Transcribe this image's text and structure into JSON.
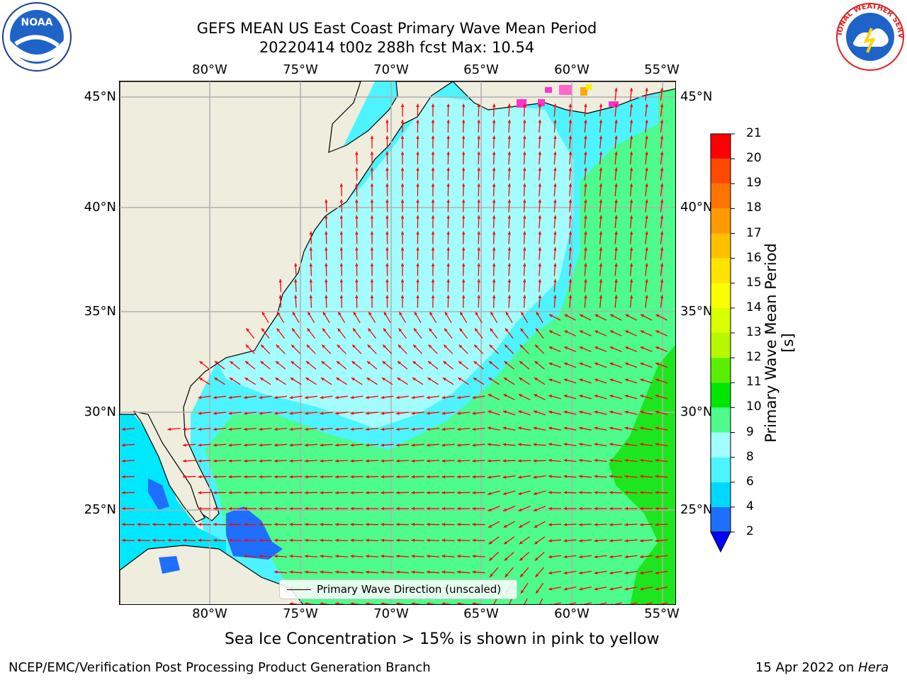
{
  "title_line1": "GEFS MEAN US East Coast Primary Wave Mean Period",
  "title_line2": "20220414 t00z 288h fcst   Max: 10.54",
  "lon_ticks": [
    "80°W",
    "75°W",
    "70°W",
    "65°W",
    "60°W",
    "55°W"
  ],
  "lat_ticks_left": [
    "45°N",
    "40°N",
    "35°N",
    "30°N",
    "25°N"
  ],
  "lat_ticks_right": [
    "45°N",
    "40°N",
    "35°N",
    "30°N",
    "25°N"
  ],
  "legend_label": "Primary Wave Direction (unscaled)",
  "colorbar": {
    "label": "Primary Wave Mean Period [s]",
    "ticks": [
      "2",
      "4",
      "6",
      "8",
      "9",
      "10",
      "11",
      "12",
      "13",
      "14",
      "15",
      "16",
      "17",
      "18",
      "19",
      "20",
      "21"
    ],
    "colors": [
      "#1f6fff",
      "#00d8ff",
      "#4df4ff",
      "#a3fdff",
      "#4dfc8c",
      "#00e600",
      "#5aef00",
      "#b7f700",
      "#d9ff00",
      "#f9ff00",
      "#ffe400",
      "#ffc000",
      "#ff9a00",
      "#ff7400",
      "#ff4a00",
      "#ff0000"
    ],
    "under_color": "#0000ff"
  },
  "caption": "Sea Ice Concentration > 15% is shown in pink to yellow",
  "footer_left": "NCEP/EMC/Verification Post Processing Product Generation Branch",
  "footer_date": "15 Apr 2022 on ",
  "footer_machine": "Hera",
  "logos": {
    "left": "NOAA",
    "right": "NATIONAL WEATHER SERVICE"
  },
  "colors": {
    "arrow": "#ff0000",
    "land": "#efedde",
    "grid": "#b0b0b0"
  }
}
